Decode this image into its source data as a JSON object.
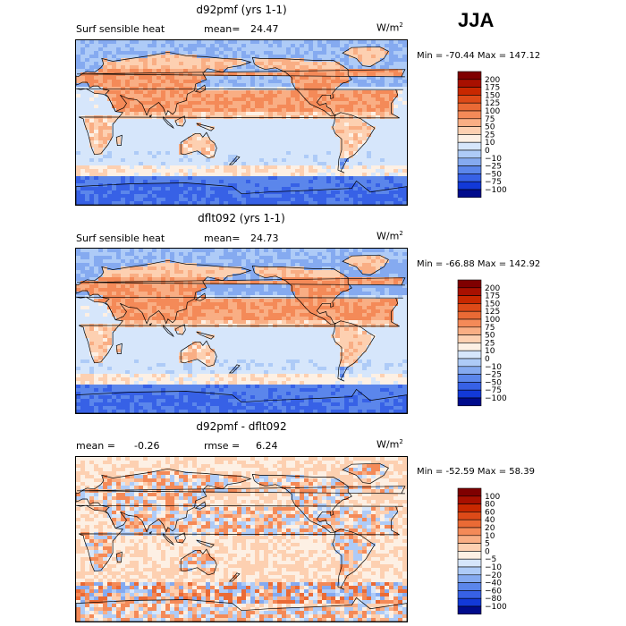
{
  "season": "JJA",
  "units": {
    "base": "W/m",
    "sup": "2"
  },
  "panels": [
    {
      "title": "d92pmf (yrs 1-1)",
      "field": "Surf sensible heat",
      "stat1": "mean=",
      "stat1_value": "24.47",
      "stat2": "",
      "stat2_value": "",
      "minmax": "Min = -70.44  Max = 147.12",
      "scale": "abs"
    },
    {
      "title": "dflt092 (yrs 1-1)",
      "field": "Surf sensible heat",
      "stat1": "mean=",
      "stat1_value": "24.73",
      "stat2": "",
      "stat2_value": "",
      "minmax": "Min = -66.88  Max = 142.92",
      "scale": "abs"
    },
    {
      "title": "d92pmf - dflt092",
      "field": "",
      "stat1": "mean =",
      "stat1_value": "-0.26",
      "stat2": "rmse =",
      "stat2_value": "6.24",
      "minmax": "Min = -52.59  Max = 58.39",
      "scale": "diff"
    }
  ],
  "chart_data": [
    {
      "type": "heatmap",
      "title": "d92pmf (yrs 1-1)",
      "variable": "Surf sensible heat",
      "units": "W/m2",
      "mean": 24.47,
      "min": -70.44,
      "max": 147.12,
      "xrange": [
        0,
        360
      ],
      "yrange": [
        -90,
        90
      ],
      "colorbar_levels": [
        -100,
        -75,
        -50,
        -25,
        -10,
        0,
        10,
        25,
        50,
        75,
        100,
        125,
        150,
        175,
        200
      ]
    },
    {
      "type": "heatmap",
      "title": "dflt092 (yrs 1-1)",
      "variable": "Surf sensible heat",
      "units": "W/m2",
      "mean": 24.73,
      "min": -66.88,
      "max": 142.92,
      "xrange": [
        0,
        360
      ],
      "yrange": [
        -90,
        90
      ],
      "colorbar_levels": [
        -100,
        -75,
        -50,
        -25,
        -10,
        0,
        10,
        25,
        50,
        75,
        100,
        125,
        150,
        175,
        200
      ]
    },
    {
      "type": "heatmap",
      "title": "d92pmf - dflt092",
      "units": "W/m2",
      "mean": -0.26,
      "rmse": 6.24,
      "min": -52.59,
      "max": 58.39,
      "xrange": [
        0,
        360
      ],
      "yrange": [
        -90,
        90
      ],
      "colorbar_levels": [
        -100,
        -80,
        -60,
        -40,
        -20,
        -10,
        -5,
        0,
        5,
        10,
        20,
        40,
        60,
        80,
        100
      ]
    }
  ],
  "colorbars": {
    "abs": {
      "labels": [
        "200",
        "175",
        "150",
        "125",
        "100",
        "75",
        "50",
        "25",
        "10",
        "0",
        "−10",
        "−25",
        "−50",
        "−75",
        "−100"
      ],
      "colors": [
        "#7f0000",
        "#a81000",
        "#c82800",
        "#dd4a18",
        "#ea6a35",
        "#f48a58",
        "#f9ae84",
        "#fdd0b1",
        "#fdf0e4",
        "#d6e6fb",
        "#aecbf7",
        "#85aaf0",
        "#5b86eb",
        "#3761e6",
        "#1239d8",
        "#000b8c"
      ]
    },
    "diff": {
      "labels": [
        "100",
        "80",
        "60",
        "40",
        "20",
        "10",
        "5",
        "0",
        "−5",
        "−10",
        "−20",
        "−40",
        "−60",
        "−80",
        "−100"
      ],
      "colors": [
        "#7f0000",
        "#a81000",
        "#c82800",
        "#dd4a18",
        "#ea6a35",
        "#f48a58",
        "#f9ae84",
        "#fdd0b1",
        "#fdf0e4",
        "#d6e6fb",
        "#aecbf7",
        "#85aaf0",
        "#5b86eb",
        "#3761e6",
        "#1239d8",
        "#000b8c"
      ]
    }
  }
}
